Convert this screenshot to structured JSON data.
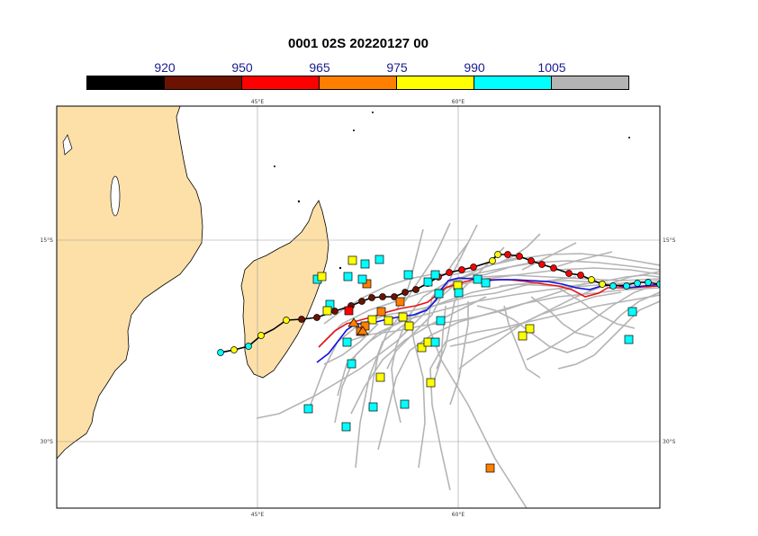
{
  "title": "0001 02S 20220127 00",
  "colorbar": {
    "labels": [
      "920",
      "950",
      "965",
      "975",
      "990",
      "1005"
    ],
    "colors": [
      "#000000",
      "#6b1300",
      "#ff0000",
      "#ff7f00",
      "#ffff00",
      "#00ffff",
      "#b4b4b4"
    ]
  },
  "map": {
    "lon_range": [
      30,
      75
    ],
    "lat_range": [
      -35,
      -5
    ],
    "land_color": "#fde0a8",
    "grid": true,
    "x_tick_labels": [
      "45°E",
      "60°E"
    ],
    "y_tick_labels": [
      "15°S",
      "30°S"
    ]
  },
  "legend_colors": {
    "ensemble_track": "#b4b4b4",
    "red_track": "#e81010",
    "blue_track": "#1010e0",
    "best_track": "#000000"
  }
}
